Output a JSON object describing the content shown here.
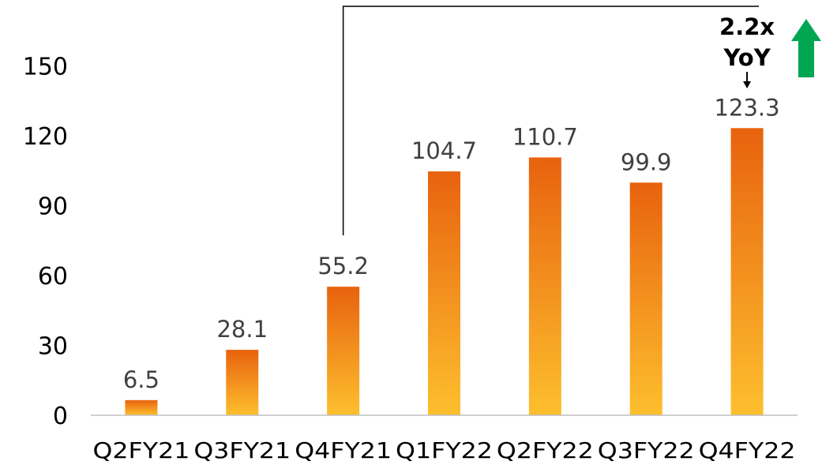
{
  "chart_data": {
    "type": "bar",
    "categories": [
      "Q2FY21",
      "Q3FY21",
      "Q4FY21",
      "Q1FY22",
      "Q2FY22",
      "Q3FY22",
      "Q4FY22"
    ],
    "values": [
      6.5,
      28.1,
      55.2,
      104.7,
      110.7,
      99.9,
      123.3
    ],
    "data_labels": [
      "6.5",
      "28.1",
      "55.2",
      "104.7",
      "110.7",
      "99.9",
      "123.3"
    ],
    "y_ticks": [
      0,
      30,
      60,
      90,
      120,
      150
    ],
    "ylim": [
      0,
      150
    ],
    "grid": false,
    "legend": "none",
    "bar_gradient": {
      "top": "#e8620e",
      "bottom": "#fdbf2e"
    },
    "annotation": {
      "line1": "2.2x",
      "line2": "YoY",
      "from_category": "Q4FY21",
      "to_category": "Q4FY22",
      "arrow_color": "#00a651"
    }
  }
}
